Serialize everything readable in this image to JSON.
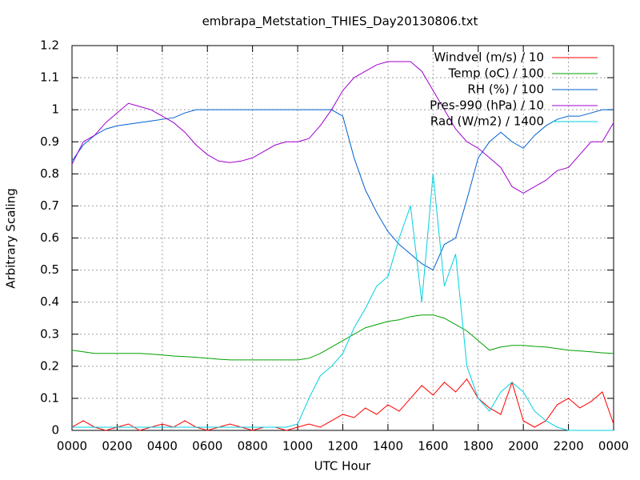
{
  "chart_data": {
    "type": "line",
    "title": "embrapa_Metstation_THIES_Day20130806.txt",
    "x_label": "UTC Hour",
    "y_label": "Arbitrary Scaling",
    "xlim": [
      0,
      24
    ],
    "ylim": [
      0,
      1.2
    ],
    "xticks": [
      {
        "value": 0,
        "label": "0000"
      },
      {
        "value": 2,
        "label": "0200"
      },
      {
        "value": 4,
        "label": "0400"
      },
      {
        "value": 6,
        "label": "0600"
      },
      {
        "value": 8,
        "label": "0800"
      },
      {
        "value": 10,
        "label": "1000"
      },
      {
        "value": 12,
        "label": "1200"
      },
      {
        "value": 14,
        "label": "1400"
      },
      {
        "value": 16,
        "label": "1600"
      },
      {
        "value": 18,
        "label": "1800"
      },
      {
        "value": 20,
        "label": "2000"
      },
      {
        "value": 22,
        "label": "2200"
      },
      {
        "value": 24,
        "label": "0000"
      }
    ],
    "yticks": [
      0,
      0.1,
      0.2,
      0.3,
      0.4,
      0.5,
      0.6,
      0.7,
      0.8,
      0.9,
      1,
      1.1,
      1.2
    ],
    "grid": true,
    "legend": "top-right",
    "x": [
      0,
      0.5,
      1,
      1.5,
      2,
      2.5,
      3,
      3.5,
      4,
      4.5,
      5,
      5.5,
      6,
      6.5,
      7,
      7.5,
      8,
      8.5,
      9,
      9.5,
      10,
      10.5,
      11,
      11.5,
      12,
      12.5,
      13,
      13.5,
      14,
      14.5,
      15,
      15.5,
      16,
      16.5,
      17,
      17.5,
      18,
      18.5,
      19,
      19.5,
      20,
      20.5,
      21,
      21.5,
      22,
      22.5,
      23,
      23.5,
      24
    ],
    "series": [
      {
        "name": "Windvel (m/s) / 10",
        "color": "#ff0000",
        "values": [
          0.01,
          0.03,
          0.01,
          0,
          0.01,
          0.02,
          0,
          0.01,
          0.02,
          0.01,
          0.03,
          0.01,
          0,
          0.01,
          0.02,
          0.01,
          0,
          0.01,
          0.01,
          0,
          0.01,
          0.02,
          0.01,
          0.03,
          0.05,
          0.04,
          0.07,
          0.05,
          0.08,
          0.06,
          0.1,
          0.14,
          0.11,
          0.15,
          0.12,
          0.16,
          0.1,
          0.07,
          0.05,
          0.15,
          0.03,
          0.01,
          0.03,
          0.08,
          0.1,
          0.07,
          0.09,
          0.12,
          0.02
        ]
      },
      {
        "name": "Temp (oC) / 100",
        "color": "#00a000",
        "values": [
          0.25,
          0.245,
          0.24,
          0.24,
          0.24,
          0.24,
          0.24,
          0.238,
          0.235,
          0.232,
          0.23,
          0.228,
          0.225,
          0.222,
          0.22,
          0.22,
          0.22,
          0.22,
          0.22,
          0.22,
          0.22,
          0.225,
          0.24,
          0.26,
          0.28,
          0.3,
          0.32,
          0.33,
          0.34,
          0.345,
          0.355,
          0.36,
          0.36,
          0.35,
          0.33,
          0.31,
          0.28,
          0.25,
          0.26,
          0.265,
          0.265,
          0.262,
          0.26,
          0.255,
          0.25,
          0.248,
          0.245,
          0.242,
          0.24
        ]
      },
      {
        "name": "RH (%) / 100",
        "color": "#0060d0",
        "values": [
          0.84,
          0.89,
          0.92,
          0.94,
          0.95,
          0.955,
          0.96,
          0.965,
          0.97,
          0.975,
          0.99,
          1,
          1,
          1,
          1,
          1,
          1,
          1,
          1,
          1,
          1,
          1,
          1,
          1,
          0.98,
          0.85,
          0.75,
          0.68,
          0.62,
          0.58,
          0.55,
          0.52,
          0.5,
          0.58,
          0.6,
          0.72,
          0.85,
          0.9,
          0.93,
          0.9,
          0.88,
          0.92,
          0.95,
          0.97,
          0.98,
          0.98,
          0.99,
          1,
          1
        ]
      },
      {
        "name": "Pres-990 (hPa) / 10",
        "color": "#a000d0",
        "values": [
          0.83,
          0.9,
          0.92,
          0.96,
          0.99,
          1.02,
          1.01,
          1,
          0.98,
          0.96,
          0.93,
          0.89,
          0.86,
          0.84,
          0.835,
          0.84,
          0.85,
          0.87,
          0.89,
          0.9,
          0.9,
          0.91,
          0.95,
          1,
          1.06,
          1.1,
          1.12,
          1.14,
          1.15,
          1.15,
          1.15,
          1.12,
          1.06,
          1,
          0.94,
          0.9,
          0.88,
          0.85,
          0.82,
          0.76,
          0.74,
          0.76,
          0.78,
          0.81,
          0.82,
          0.86,
          0.9,
          0.9,
          0.96
        ]
      },
      {
        "name": "Rad (W/m2) / 1400",
        "color": "#00d0e0",
        "values": [
          0.01,
          0.01,
          0.01,
          0.01,
          0.01,
          0.01,
          0.01,
          0.01,
          0.01,
          0.01,
          0.01,
          0.01,
          0.01,
          0.01,
          0.01,
          0.01,
          0.01,
          0.01,
          0.01,
          0.01,
          0.02,
          0.1,
          0.17,
          0.2,
          0.24,
          0.32,
          0.38,
          0.45,
          0.48,
          0.6,
          0.7,
          0.4,
          0.8,
          0.45,
          0.55,
          0.2,
          0.1,
          0.06,
          0.12,
          0.15,
          0.12,
          0.06,
          0.03,
          0.01,
          0,
          0,
          0,
          0,
          0
        ]
      }
    ]
  }
}
